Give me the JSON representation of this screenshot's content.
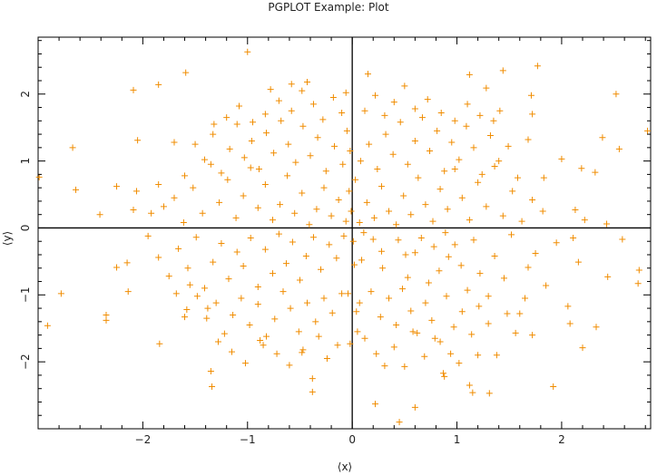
{
  "chart_data": {
    "type": "scatter",
    "title": "PGPLOT Example: Plot",
    "xlabel": "⟨x⟩",
    "ylabel": "⟨y⟩",
    "xlim": [
      -3,
      2.85
    ],
    "ylim": [
      -3,
      2.85
    ],
    "xticks": [
      -2,
      -1,
      0,
      1,
      2
    ],
    "yticks": [
      -2,
      -1,
      0,
      1,
      2
    ],
    "xtick_labels": [
      "−2",
      "−1",
      "0",
      "1",
      "2"
    ],
    "ytick_labels": [
      "−2",
      "−1",
      "0",
      "1",
      "2"
    ],
    "marker": "+",
    "marker_color": "#f08c00",
    "axis_color": "#000000",
    "grid": false,
    "cross_axes_at_zero": true,
    "points": [
      [
        -1.0,
        2.63
      ],
      [
        -1.59,
        2.32
      ],
      [
        -2.09,
        2.06
      ],
      [
        -1.85,
        2.14
      ],
      [
        1.77,
        2.42
      ],
      [
        1.28,
        2.09
      ],
      [
        1.44,
        2.35
      ],
      [
        1.12,
        2.29
      ],
      [
        0.15,
        2.3
      ],
      [
        -0.43,
        2.18
      ],
      [
        -0.78,
        2.07
      ],
      [
        -0.58,
        2.15
      ],
      [
        -0.06,
        2.02
      ],
      [
        1.71,
        1.98
      ],
      [
        2.52,
        2.0
      ],
      [
        -2.05,
        1.31
      ],
      [
        -2.67,
        1.2
      ],
      [
        -2.64,
        0.57
      ],
      [
        -2.41,
        0.2
      ],
      [
        -2.25,
        0.62
      ],
      [
        -2.99,
        0.76
      ],
      [
        -2.06,
        0.55
      ],
      [
        -1.85,
        0.65
      ],
      [
        -1.92,
        0.22
      ],
      [
        -2.09,
        0.27
      ],
      [
        1.41,
        1.75
      ],
      [
        1.72,
        1.7
      ],
      [
        2.0,
        1.03
      ],
      [
        1.83,
        0.75
      ],
      [
        2.19,
        0.89
      ],
      [
        2.39,
        1.35
      ],
      [
        2.55,
        1.18
      ],
      [
        2.82,
        1.45
      ],
      [
        2.32,
        0.83
      ],
      [
        2.13,
        0.27
      ],
      [
        2.22,
        0.12
      ],
      [
        2.43,
        0.06
      ],
      [
        2.11,
        -0.15
      ],
      [
        2.58,
        -0.17
      ],
      [
        2.74,
        -0.63
      ],
      [
        2.44,
        -0.73
      ],
      [
        2.16,
        -0.51
      ],
      [
        -2.91,
        -1.46
      ],
      [
        -2.78,
        -0.98
      ],
      [
        -2.35,
        -1.3
      ],
      [
        -2.35,
        -1.38
      ],
      [
        -2.14,
        -0.95
      ],
      [
        -1.84,
        -1.73
      ],
      [
        -1.6,
        -1.33
      ],
      [
        -1.38,
        -1.2
      ],
      [
        -1.35,
        -2.14
      ],
      [
        -1.34,
        -2.37
      ],
      [
        -2.15,
        -0.52
      ],
      [
        -2.25,
        -0.59
      ],
      [
        -1.55,
        -0.85
      ],
      [
        -0.85,
        -1.75
      ],
      [
        -0.48,
        -1.86
      ],
      [
        -0.38,
        -2.25
      ],
      [
        -0.38,
        -2.45
      ],
      [
        -0.02,
        -1.73
      ],
      [
        0.22,
        -2.63
      ],
      [
        0.45,
        -2.9
      ],
      [
        0.6,
        -2.68
      ],
      [
        0.87,
        -2.17
      ],
      [
        0.88,
        -2.22
      ],
      [
        1.12,
        -2.35
      ],
      [
        1.15,
        -2.46
      ],
      [
        1.31,
        -2.47
      ],
      [
        1.2,
        -1.9
      ],
      [
        1.92,
        -2.37
      ],
      [
        2.2,
        -1.79
      ],
      [
        2.33,
        -1.48
      ],
      [
        2.06,
        -1.17
      ],
      [
        2.08,
        -1.43
      ],
      [
        2.73,
        -0.83
      ],
      [
        0.11,
        -0.07
      ],
      [
        0.09,
        -0.48
      ],
      [
        0.2,
        -0.17
      ],
      [
        0.28,
        -0.35
      ],
      [
        0.29,
        -0.6
      ],
      [
        0.44,
        -0.18
      ],
      [
        0.51,
        -0.4
      ],
      [
        0.53,
        -0.74
      ],
      [
        0.6,
        -0.37
      ],
      [
        0.66,
        -0.15
      ],
      [
        0.73,
        -0.82
      ],
      [
        0.78,
        -0.28
      ],
      [
        0.83,
        -0.64
      ],
      [
        0.89,
        -0.07
      ],
      [
        0.92,
        -0.43
      ],
      [
        0.98,
        -0.25
      ],
      [
        1.04,
        -0.56
      ],
      [
        1.1,
        -0.93
      ],
      [
        1.16,
        -0.18
      ],
      [
        1.22,
        -0.68
      ],
      [
        1.3,
        -1.02
      ],
      [
        1.36,
        -0.42
      ],
      [
        1.45,
        -0.75
      ],
      [
        1.52,
        -0.1
      ],
      [
        1.6,
        -1.28
      ],
      [
        1.68,
        -0.59
      ],
      [
        1.75,
        -0.38
      ],
      [
        1.85,
        -0.86
      ],
      [
        1.95,
        -0.22
      ],
      [
        0.07,
        -1.12
      ],
      [
        0.18,
        -0.95
      ],
      [
        0.27,
        -1.33
      ],
      [
        0.35,
        -1.05
      ],
      [
        0.42,
        -1.45
      ],
      [
        0.48,
        -0.91
      ],
      [
        0.56,
        -1.24
      ],
      [
        0.62,
        -1.57
      ],
      [
        0.7,
        -1.12
      ],
      [
        0.76,
        -1.38
      ],
      [
        0.84,
        -1.7
      ],
      [
        0.9,
        -1.02
      ],
      [
        0.97,
        -1.48
      ],
      [
        1.05,
        -1.25
      ],
      [
        1.14,
        -1.59
      ],
      [
        1.21,
        -1.17
      ],
      [
        1.3,
        -1.43
      ],
      [
        1.38,
        -1.9
      ],
      [
        1.48,
        -1.28
      ],
      [
        1.56,
        -1.57
      ],
      [
        1.65,
        -1.05
      ],
      [
        1.72,
        -1.6
      ],
      [
        0.12,
        -1.65
      ],
      [
        0.23,
        -1.88
      ],
      [
        0.31,
        -2.06
      ],
      [
        0.4,
        -1.78
      ],
      [
        0.5,
        -2.07
      ],
      [
        0.58,
        -1.55
      ],
      [
        0.69,
        -1.92
      ],
      [
        0.79,
        -1.65
      ],
      [
        0.94,
        -1.88
      ],
      [
        1.02,
        -2.02
      ],
      [
        -0.08,
        -0.12
      ],
      [
        -0.15,
        -0.45
      ],
      [
        -0.22,
        -0.25
      ],
      [
        -0.3,
        -0.62
      ],
      [
        -0.37,
        -0.14
      ],
      [
        -0.44,
        -0.42
      ],
      [
        -0.5,
        -0.78
      ],
      [
        -0.57,
        -0.21
      ],
      [
        -0.63,
        -0.53
      ],
      [
        -0.7,
        -0.09
      ],
      [
        -0.76,
        -0.68
      ],
      [
        -0.83,
        -0.32
      ],
      [
        -0.9,
        -0.88
      ],
      [
        -0.97,
        -0.15
      ],
      [
        -1.04,
        -0.57
      ],
      [
        -1.1,
        -0.36
      ],
      [
        -1.18,
        -0.76
      ],
      [
        -1.25,
        -0.23
      ],
      [
        -1.33,
        -0.51
      ],
      [
        -1.41,
        -0.9
      ],
      [
        -1.49,
        -0.14
      ],
      [
        -1.57,
        -0.6
      ],
      [
        -1.66,
        -0.31
      ],
      [
        -1.75,
        -0.72
      ],
      [
        -1.85,
        -0.44
      ],
      [
        -1.95,
        -0.12
      ],
      [
        -0.1,
        -0.98
      ],
      [
        -0.19,
        -1.27
      ],
      [
        -0.27,
        -1.05
      ],
      [
        -0.35,
        -1.4
      ],
      [
        -0.43,
        -1.12
      ],
      [
        -0.51,
        -1.55
      ],
      [
        -0.59,
        -1.2
      ],
      [
        -0.66,
        -0.95
      ],
      [
        -0.74,
        -1.36
      ],
      [
        -0.82,
        -1.62
      ],
      [
        -0.9,
        -1.14
      ],
      [
        -0.98,
        -1.45
      ],
      [
        -1.06,
        -1.05
      ],
      [
        -1.14,
        -1.3
      ],
      [
        -1.22,
        -1.58
      ],
      [
        -1.3,
        -1.12
      ],
      [
        -1.39,
        -1.35
      ],
      [
        -1.48,
        -1.02
      ],
      [
        -1.58,
        -1.22
      ],
      [
        -1.68,
        -0.98
      ],
      [
        -0.14,
        -1.75
      ],
      [
        -0.24,
        -1.95
      ],
      [
        -0.32,
        -1.62
      ],
      [
        -0.47,
        -1.82
      ],
      [
        -0.6,
        -2.05
      ],
      [
        -0.72,
        -1.88
      ],
      [
        -0.88,
        -1.68
      ],
      [
        -1.02,
        -2.02
      ],
      [
        -1.15,
        -1.85
      ],
      [
        -1.28,
        -1.7
      ],
      [
        -0.06,
        0.1
      ],
      [
        -0.13,
        0.42
      ],
      [
        -0.2,
        0.18
      ],
      [
        -0.27,
        0.6
      ],
      [
        -0.34,
        0.28
      ],
      [
        -0.41,
        0.05
      ],
      [
        -0.48,
        0.52
      ],
      [
        -0.55,
        0.22
      ],
      [
        -0.62,
        0.78
      ],
      [
        -0.69,
        0.35
      ],
      [
        -0.76,
        0.12
      ],
      [
        -0.83,
        0.65
      ],
      [
        -0.9,
        0.3
      ],
      [
        -0.97,
        0.9
      ],
      [
        -1.04,
        0.48
      ],
      [
        -1.11,
        0.15
      ],
      [
        -1.19,
        0.72
      ],
      [
        -1.27,
        0.38
      ],
      [
        -1.35,
        0.95
      ],
      [
        -1.43,
        0.22
      ],
      [
        -1.52,
        0.6
      ],
      [
        -1.61,
        0.08
      ],
      [
        -1.7,
        0.45
      ],
      [
        -1.8,
        0.32
      ],
      [
        -0.09,
        0.95
      ],
      [
        -0.17,
        1.22
      ],
      [
        -0.25,
        0.85
      ],
      [
        -0.33,
        1.35
      ],
      [
        -0.4,
        1.08
      ],
      [
        -0.47,
        1.52
      ],
      [
        -0.54,
        0.98
      ],
      [
        -0.61,
        1.25
      ],
      [
        -0.68,
        1.6
      ],
      [
        -0.75,
        1.12
      ],
      [
        -0.82,
        1.42
      ],
      [
        -0.89,
        0.88
      ],
      [
        -0.96,
        1.3
      ],
      [
        -1.03,
        1.05
      ],
      [
        -1.1,
        1.55
      ],
      [
        -1.17,
        1.18
      ],
      [
        -1.25,
        0.82
      ],
      [
        -1.33,
        1.4
      ],
      [
        -1.41,
        1.02
      ],
      [
        -1.5,
        1.25
      ],
      [
        -1.6,
        0.78
      ],
      [
        -1.7,
        1.28
      ],
      [
        -0.1,
        1.72
      ],
      [
        -0.18,
        1.95
      ],
      [
        -0.28,
        1.62
      ],
      [
        -0.37,
        1.85
      ],
      [
        -0.48,
        2.05
      ],
      [
        -0.58,
        1.75
      ],
      [
        -0.7,
        1.9
      ],
      [
        -0.83,
        1.7
      ],
      [
        -0.95,
        1.58
      ],
      [
        -1.08,
        1.82
      ],
      [
        -1.2,
        1.65
      ],
      [
        -1.32,
        1.55
      ],
      [
        0.07,
        0.08
      ],
      [
        0.14,
        0.38
      ],
      [
        0.21,
        0.15
      ],
      [
        0.28,
        0.62
      ],
      [
        0.35,
        0.25
      ],
      [
        0.42,
        0.05
      ],
      [
        0.49,
        0.48
      ],
      [
        0.56,
        0.2
      ],
      [
        0.63,
        0.75
      ],
      [
        0.7,
        0.35
      ],
      [
        0.77,
        0.1
      ],
      [
        0.84,
        0.58
      ],
      [
        0.91,
        0.28
      ],
      [
        0.98,
        0.88
      ],
      [
        1.05,
        0.45
      ],
      [
        1.12,
        0.12
      ],
      [
        1.2,
        0.68
      ],
      [
        1.28,
        0.32
      ],
      [
        1.36,
        0.92
      ],
      [
        1.44,
        0.18
      ],
      [
        1.53,
        0.55
      ],
      [
        1.62,
        0.1
      ],
      [
        1.72,
        0.42
      ],
      [
        1.82,
        0.25
      ],
      [
        0.08,
        1.0
      ],
      [
        0.16,
        1.25
      ],
      [
        0.24,
        0.88
      ],
      [
        0.32,
        1.4
      ],
      [
        0.39,
        1.1
      ],
      [
        0.46,
        1.58
      ],
      [
        0.53,
        0.95
      ],
      [
        0.6,
        1.3
      ],
      [
        0.67,
        1.65
      ],
      [
        0.74,
        1.15
      ],
      [
        0.81,
        1.45
      ],
      [
        0.88,
        0.85
      ],
      [
        0.95,
        1.28
      ],
      [
        1.02,
        1.02
      ],
      [
        1.09,
        1.52
      ],
      [
        1.16,
        1.2
      ],
      [
        1.24,
        0.8
      ],
      [
        1.32,
        1.38
      ],
      [
        1.4,
        1.0
      ],
      [
        1.49,
        1.22
      ],
      [
        1.58,
        0.75
      ],
      [
        1.68,
        1.32
      ],
      [
        0.12,
        1.75
      ],
      [
        0.22,
        1.98
      ],
      [
        0.31,
        1.68
      ],
      [
        0.4,
        1.88
      ],
      [
        0.5,
        2.12
      ],
      [
        0.6,
        1.78
      ],
      [
        0.72,
        1.92
      ],
      [
        0.85,
        1.72
      ],
      [
        0.98,
        1.6
      ],
      [
        1.1,
        1.85
      ],
      [
        1.22,
        1.68
      ],
      [
        1.35,
        1.6
      ],
      [
        -0.03,
        0.55
      ],
      [
        0.03,
        0.72
      ],
      [
        -0.02,
        1.15
      ],
      [
        0.02,
        -0.55
      ],
      [
        -0.04,
        -0.98
      ],
      [
        0.04,
        -1.25
      ],
      [
        -0.01,
        0.25
      ],
      [
        0.01,
        -0.2
      ],
      [
        -0.05,
        1.45
      ],
      [
        0.05,
        -1.55
      ]
    ]
  }
}
